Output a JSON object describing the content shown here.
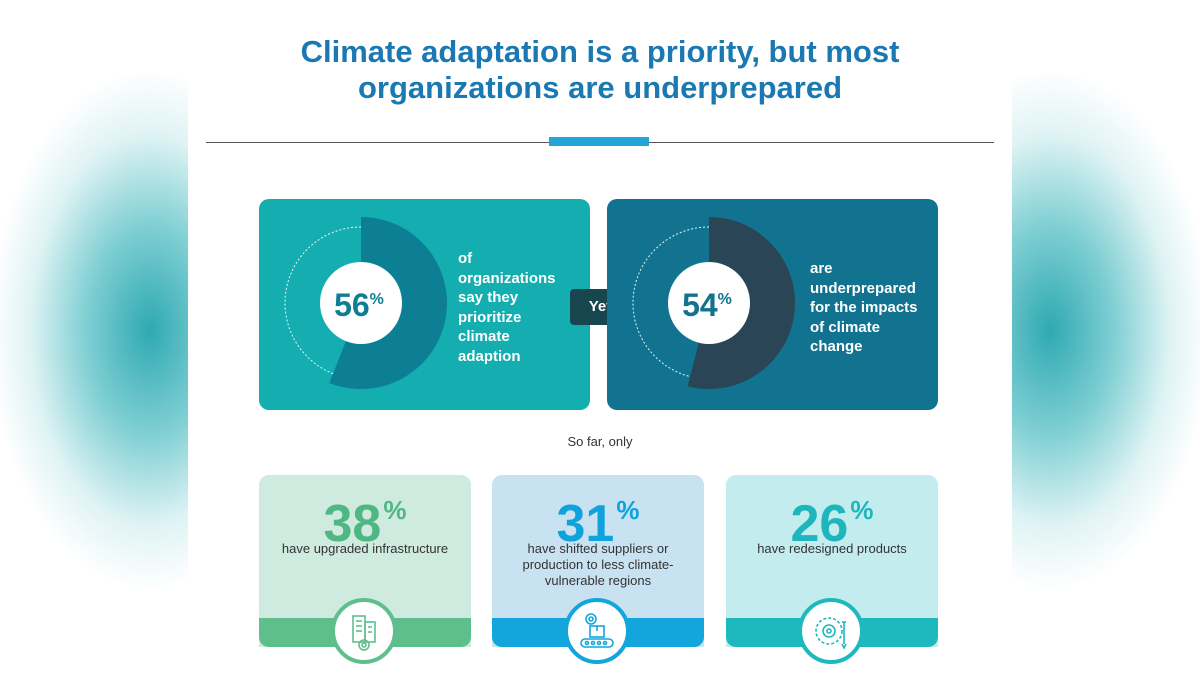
{
  "title_line1": "Climate adaptation is a priority, but most",
  "title_line2": "organizations are underprepared",
  "colors": {
    "title": "#1a79b2",
    "accent": "#21a6d9",
    "card_teal": "#14aeb0",
    "card_blue": "#11738f",
    "yet_bg": "#17464f",
    "green": "#5ebf8d",
    "sky": "#12a6dc",
    "aqua": "#1eb8bf"
  },
  "cards": [
    {
      "value": 56,
      "percent_sign": "%",
      "value_label": "56",
      "lines": [
        "of",
        "organizations",
        "say they",
        "prioritize",
        "climate",
        "adaption"
      ]
    },
    {
      "value": 54,
      "percent_sign": "%",
      "value_label": "54",
      "lines": [
        "are",
        "underprepared",
        "for the impacts",
        "of climate",
        "change"
      ]
    }
  ],
  "connector": "Yet",
  "subheading": "So far, only",
  "stats": [
    {
      "value": "38",
      "percent_sign": "%",
      "label": "have upgraded infrastructure",
      "icon": "building-gear-icon"
    },
    {
      "value": "31",
      "percent_sign": "%",
      "label": "have shifted suppliers or production to less climate-vulnerable regions",
      "icon": "conveyor-box-icon"
    },
    {
      "value": "26",
      "percent_sign": "%",
      "label": "have redesigned products",
      "icon": "product-design-icon"
    }
  ]
}
